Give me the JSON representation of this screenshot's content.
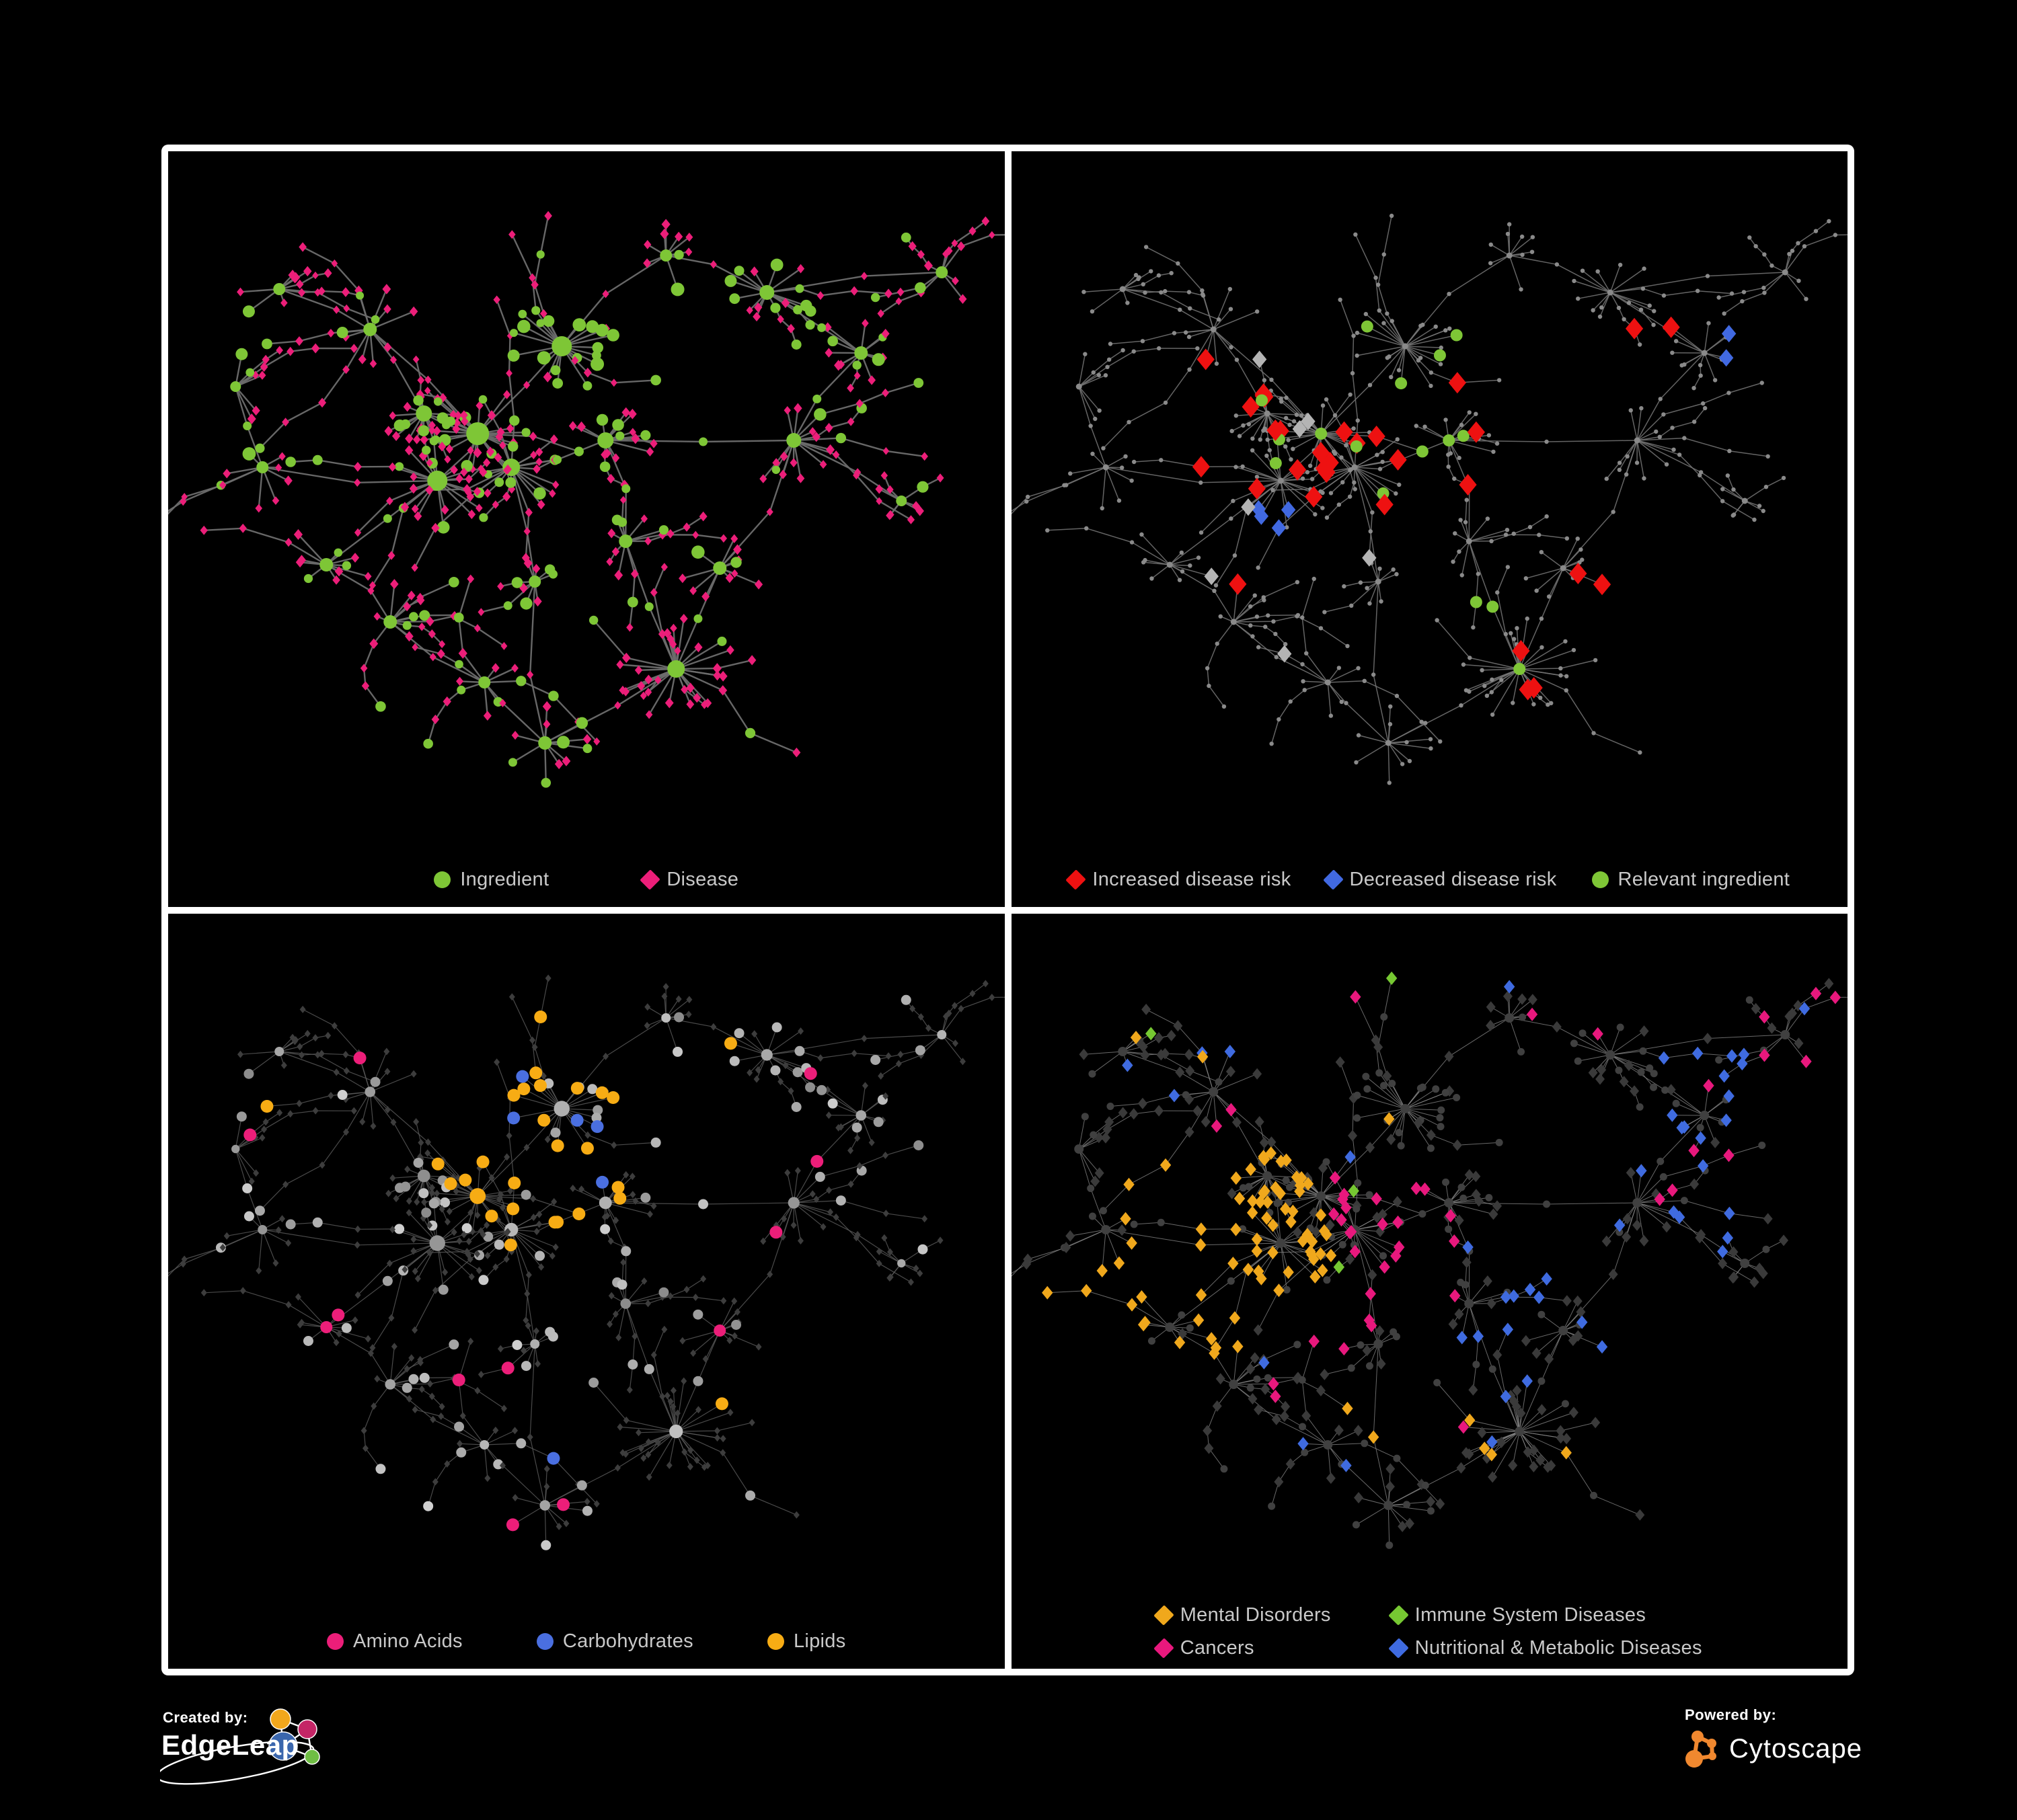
{
  "figure": {
    "type": "network-visualization",
    "panel_count": 4
  },
  "branding": {
    "created_by_label": "Created by:",
    "created_by_name": "EdgeLeap",
    "powered_by_label": "Powered by:",
    "powered_by_name": "Cytoscape"
  },
  "colors": {
    "background": "#000000",
    "frame": "#ffffff",
    "legend_text": "#c9c9c9",
    "ingredient_green": "#7ec636",
    "disease_pink": "#ec1e79",
    "risk_red": "#ee1111",
    "risk_blue": "#4169e1",
    "neutral_silver": "#b4b4b4",
    "amino_pink": "#ec1e79",
    "carb_blue": "#4a6fe0",
    "lipid_orange": "#f7ac14",
    "mental_orange": "#f0a81c",
    "cancer_pink": "#e8187d",
    "immune_green": "#76c832",
    "nutritional_blue": "#3f6be0",
    "p1_edge": "#6d6d6d",
    "p2_edge": "#757575",
    "p2_base": "#8a8a8a",
    "p3_edge": "#5c5c5c",
    "p3_disease": "#3d3d3d",
    "p4_edge": "#8c8c8c",
    "p4_base": "#3a3a3a",
    "p4_circle": "#404040",
    "white": "#ffffff",
    "edgeleap_orange": "#f2a71c",
    "edgeleap_magenta": "#c42566",
    "edgeleap_blue": "#3a66ad",
    "edgeleap_green": "#6fbe44",
    "cytoscape_orange": "#f0882f"
  },
  "panels": [
    {
      "id": "ingredient-disease",
      "legend": [
        {
          "shape": "circle",
          "color_key": "ingredient_green",
          "label": "Ingredient"
        },
        {
          "shape": "diamond",
          "color_key": "disease_pink",
          "label": "Disease"
        }
      ]
    },
    {
      "id": "disease-risk",
      "legend": [
        {
          "shape": "diamond",
          "color_key": "risk_red",
          "label": "Increased disease risk"
        },
        {
          "shape": "diamond",
          "color_key": "risk_blue",
          "label": "Decreased disease risk"
        },
        {
          "shape": "circle",
          "color_key": "ingredient_green",
          "label": "Relevant ingredient"
        }
      ]
    },
    {
      "id": "ingredient-classes",
      "legend": [
        {
          "shape": "circle",
          "color_key": "amino_pink",
          "label": "Amino Acids"
        },
        {
          "shape": "circle",
          "color_key": "carb_blue",
          "label": "Carbohydrates"
        },
        {
          "shape": "circle",
          "color_key": "lipid_orange",
          "label": "Lipids"
        }
      ]
    },
    {
      "id": "disease-classes",
      "legend_layout": "two-column",
      "legend": [
        {
          "shape": "diamond",
          "color_key": "mental_orange",
          "label": "Mental Disorders"
        },
        {
          "shape": "diamond",
          "color_key": "cancer_pink",
          "label": "Cancers"
        },
        {
          "shape": "diamond",
          "color_key": "immune_green",
          "label": "Immune System Diseases"
        },
        {
          "shape": "diamond",
          "color_key": "nutritional_blue",
          "label": "Nutritional & Metabolic Diseases"
        }
      ]
    }
  ],
  "network": {
    "seed": 11
  }
}
